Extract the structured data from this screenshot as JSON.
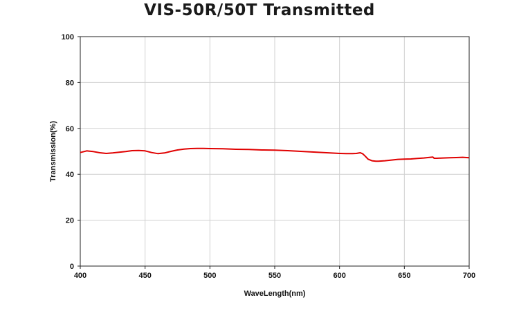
{
  "chart_data": {
    "type": "line",
    "title": "VIS-50R/50T Transmitted",
    "xlabel": "WaveLength(nm)",
    "ylabel": "Transmission(%)",
    "xlim": [
      400,
      700
    ],
    "ylim": [
      0,
      100
    ],
    "xticks": [
      "400",
      "450",
      "500",
      "550",
      "600",
      "650",
      "700"
    ],
    "yticks": [
      "0",
      "20",
      "40",
      "60",
      "80",
      "100"
    ],
    "grid": true,
    "series": [
      {
        "color": "#e00000",
        "x": [
          400,
          405,
          410,
          415,
          420,
          425,
          430,
          435,
          440,
          445,
          450,
          455,
          460,
          465,
          470,
          475,
          480,
          485,
          490,
          495,
          500,
          510,
          520,
          530,
          540,
          550,
          560,
          570,
          580,
          590,
          600,
          605,
          610,
          613,
          616,
          618,
          620,
          622,
          625,
          628,
          630,
          635,
          640,
          645,
          650,
          655,
          660,
          665,
          670,
          672,
          673,
          675,
          680,
          685,
          690,
          695,
          700
        ],
        "y": [
          49.5,
          50.2,
          49.9,
          49.4,
          49.1,
          49.3,
          49.6,
          49.9,
          50.3,
          50.4,
          50.2,
          49.5,
          49.0,
          49.3,
          50.0,
          50.6,
          51.0,
          51.2,
          51.3,
          51.3,
          51.2,
          51.1,
          50.9,
          50.8,
          50.6,
          50.5,
          50.3,
          50.0,
          49.7,
          49.4,
          49.1,
          49.0,
          49.0,
          49.1,
          49.4,
          48.9,
          47.8,
          46.6,
          45.9,
          45.7,
          45.7,
          45.9,
          46.2,
          46.5,
          46.6,
          46.7,
          46.9,
          47.1,
          47.4,
          47.5,
          47.0,
          47.0,
          47.1,
          47.2,
          47.3,
          47.4,
          47.2
        ]
      }
    ]
  }
}
